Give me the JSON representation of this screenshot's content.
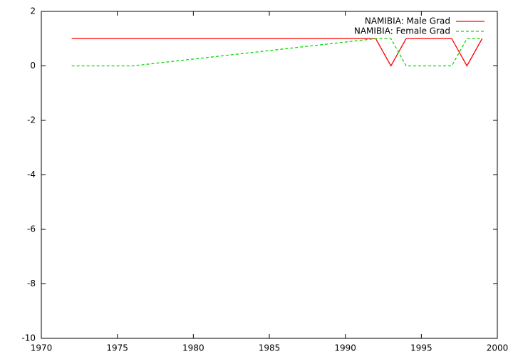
{
  "chart_data": {
    "type": "line",
    "series": [
      {
        "name": "NAMIBIA: Male Grad",
        "color": "#ff0000",
        "dash": false,
        "x": [
          1972,
          1992,
          1993,
          1994,
          1997,
          1998,
          1999
        ],
        "values": [
          1,
          1,
          0,
          1,
          1,
          0,
          1
        ]
      },
      {
        "name": "NAMIBIA: Female Grad",
        "color": "#00dd00",
        "dash": true,
        "x": [
          1972,
          1976,
          1992,
          1993,
          1994,
          1997,
          1998,
          1999
        ],
        "values": [
          0,
          0,
          1,
          1,
          0,
          0,
          1,
          1
        ]
      }
    ],
    "xlim": [
      1970,
      2000
    ],
    "xticks": [
      1970,
      1975,
      1980,
      1985,
      1990,
      1995,
      2000
    ],
    "ylim": [
      -10,
      2
    ],
    "yticks": [
      -10,
      -8,
      -6,
      -4,
      -2,
      0,
      2
    ],
    "legend": "top-right"
  }
}
